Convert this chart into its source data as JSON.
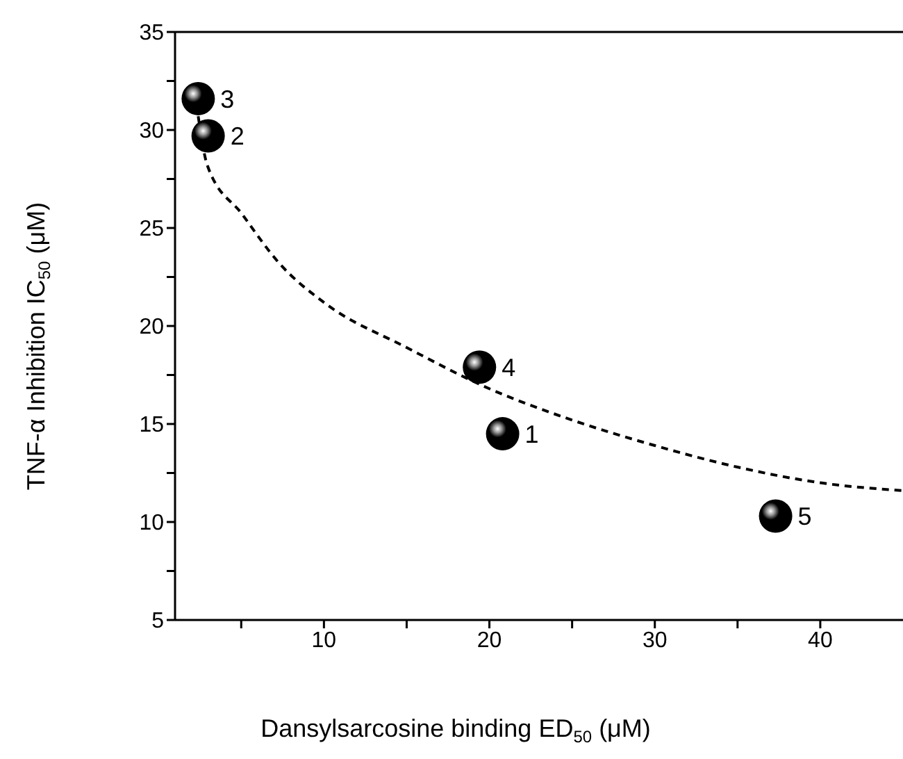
{
  "chart_data": {
    "type": "scatter",
    "xlabel": "Dansylsarcosine binding ED$_{50}$ (μM)",
    "ylabel": "TNF-α Inhibition IC$_{50}$ (μM)",
    "xlim": [
      1,
      45
    ],
    "xticks": [
      {
        "value": 5,
        "label": null
      },
      10,
      {
        "value": 15,
        "label": null
      },
      20,
      {
        "value": 25,
        "label": null
      },
      30,
      {
        "value": 35,
        "label": null
      },
      40
    ],
    "ylim": [
      5,
      35
    ],
    "yticks": [
      5,
      {
        "value": 7.5,
        "label": null
      },
      10,
      {
        "value": 12.5,
        "label": null
      },
      15,
      {
        "value": 17.5,
        "label": null
      },
      20,
      {
        "value": 22.5,
        "label": null
      },
      25,
      {
        "value": 27.5,
        "label": null
      },
      30,
      {
        "value": 32.5,
        "label": null
      },
      35
    ],
    "annotations": [
      {
        "text": "1",
        "x": 20.8,
        "y": 14.5
      },
      {
        "text": "2",
        "x": 3.0,
        "y": 29.7
      },
      {
        "text": "3",
        "x": 2.4,
        "y": 31.6
      },
      {
        "text": "4",
        "x": 19.4,
        "y": 17.9
      },
      {
        "text": "5",
        "x": 37.3,
        "y": 10.3
      }
    ],
    "series": [
      {
        "color": "#000000",
        "marker": "circle",
        "x": [
          20.8,
          3.0,
          2.4,
          19.4,
          37.3
        ],
        "values": [
          14.5,
          29.7,
          31.6,
          17.9,
          10.3
        ]
      },
      {
        "type": "line",
        "color": "#000000",
        "marker": "none",
        "line_style": "dashed",
        "x": [
          2.4,
          2.95,
          5.06,
          7.3,
          10,
          15,
          20,
          25,
          30,
          35,
          40,
          45
        ],
        "values": [
          30.7,
          28.2,
          25.7,
          23.2,
          21.2,
          18.9,
          16.8,
          15.2,
          13.9,
          12.8,
          12.0,
          11.6
        ]
      }
    ]
  }
}
